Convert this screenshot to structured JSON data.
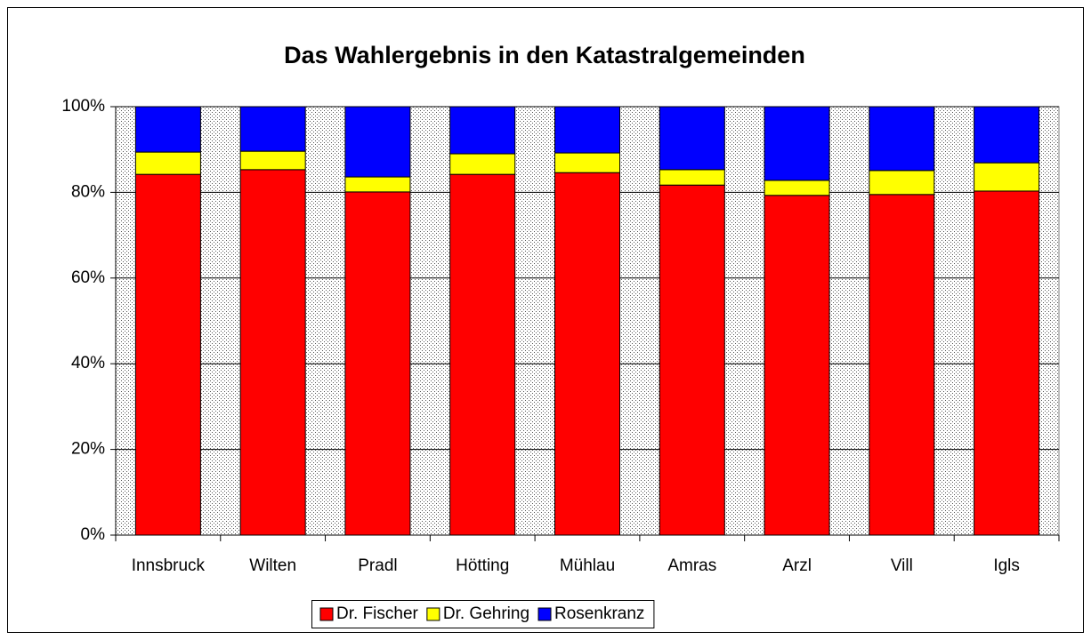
{
  "chart_data": {
    "type": "stacked_bar",
    "title": "Das Wahlergebnis in den Katastralgemeinden",
    "categories": [
      "Innsbruck",
      "Wilten",
      "Pradl",
      "Hötting",
      "Mühlau",
      "Amras",
      "Arzl",
      "Vill",
      "Igls"
    ],
    "series": [
      {
        "name": "Dr. Fischer",
        "color": "#ff0000",
        "values": [
          84.2,
          85.3,
          80.1,
          84.2,
          84.6,
          81.7,
          79.3,
          79.5,
          80.3
        ]
      },
      {
        "name": "Dr. Gehring",
        "color": "#ffff00",
        "values": [
          5.2,
          4.3,
          3.5,
          4.8,
          4.6,
          3.6,
          3.5,
          5.6,
          6.6
        ]
      },
      {
        "name": "Rosenkranz",
        "color": "#0000ff",
        "values": [
          10.6,
          10.4,
          16.4,
          11.0,
          10.8,
          14.7,
          17.2,
          14.9,
          13.1
        ]
      }
    ],
    "ylim": [
      0,
      100
    ],
    "yticks": [
      {
        "value": 0,
        "label": "0%"
      },
      {
        "value": 20,
        "label": "20%"
      },
      {
        "value": 40,
        "label": "40%"
      },
      {
        "value": 60,
        "label": "60%"
      },
      {
        "value": 80,
        "label": "80%"
      },
      {
        "value": 100,
        "label": "100%"
      }
    ],
    "grid": true,
    "legend": "bottom"
  }
}
